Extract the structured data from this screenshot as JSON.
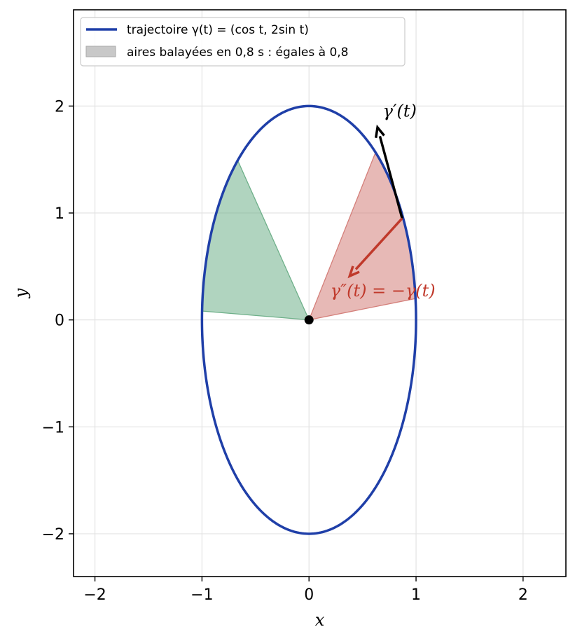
{
  "chart_data": {
    "type": "line",
    "title": "",
    "xlabel": "x",
    "ylabel": "y",
    "xlim": [
      -2.2,
      2.4
    ],
    "ylim": [
      -2.4,
      2.9
    ],
    "xticks": [
      -2,
      -1,
      0,
      1,
      2
    ],
    "yticks": [
      -2,
      -1,
      0,
      1,
      2
    ],
    "xtick_labels": [
      "−2",
      "−1",
      "0",
      "1",
      "2"
    ],
    "ytick_labels": [
      "−2",
      "−1",
      "0",
      "1",
      "2"
    ],
    "grid": true,
    "legend_position": "top-left",
    "series": [
      {
        "name": "trajectoire γ(t) = (cos t, 2sin t)",
        "kind": "curve",
        "x_expr": "cos t",
        "y_expr": "2 sin t",
        "t_range": [
          0,
          6.2832
        ],
        "color": "#1f3fa8"
      }
    ],
    "sectors": {
      "legend_label": "aires balayées en 0,8 s : égales à 0,8",
      "legend_color": "#c8c8c8",
      "items": [
        {
          "t_start": 0.1,
          "t_end": 0.9,
          "color": "#d47f7a"
        },
        {
          "t_start": 2.3,
          "t_end": 3.1,
          "color": "#6fb08a"
        }
      ]
    },
    "origin_point": {
      "x": 0,
      "y": 0,
      "color": "#000000"
    },
    "vectors": [
      {
        "name": "velocity",
        "from": [
          0.87,
          0.95
        ],
        "to": [
          0.64,
          1.8
        ],
        "color": "#000000",
        "label": "γ′(t)",
        "label_at": [
          0.69,
          1.9
        ]
      },
      {
        "name": "acceleration",
        "from": [
          0.87,
          0.95
        ],
        "to": [
          0.38,
          0.41
        ],
        "color": "#c0392b",
        "label": "γ″(t) = −γ(t)",
        "label_at": [
          0.2,
          0.22
        ]
      }
    ]
  }
}
